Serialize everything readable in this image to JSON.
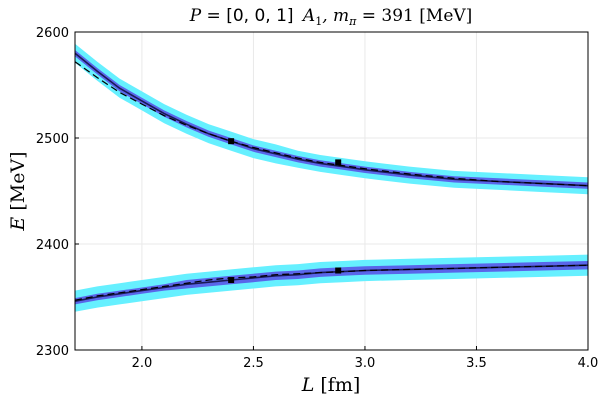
{
  "chart_data": {
    "type": "line",
    "title": "P = [0, 0, 1] A1, mπ = 391 [MeV]",
    "title_parts": {
      "p_label": "P = ",
      "p_value": "[0, 0, 1]",
      "irrep": "A",
      "irrep_sub": "1",
      "sep": ", m",
      "m_sub": "π",
      "m_value": " = 391 [MeV]"
    },
    "xlabel": "L [fm]",
    "xlabel_parts": {
      "var": "L",
      "unit": "[fm]"
    },
    "ylabel": "E [MeV]",
    "ylabel_parts": {
      "var": "E",
      "unit": "[MeV]"
    },
    "xlim": [
      1.7,
      4.0
    ],
    "ylim": [
      2300,
      2600
    ],
    "xticks": [
      "2.0",
      "2.5",
      "3.0",
      "3.5",
      "4.0"
    ],
    "yticks": [
      "2300",
      "2400",
      "2500",
      "2600"
    ],
    "xtick_values": [
      2.0,
      2.5,
      3.0,
      3.5,
      4.0
    ],
    "ytick_values": [
      2300,
      2400,
      2500,
      2600
    ],
    "grid": true,
    "colors": {
      "outer_band": "#66f0ff",
      "inner_band": "#5a66ea",
      "central_line": "#1a1a55",
      "dashed_line": "#000000",
      "points": "#000000"
    },
    "series": [
      {
        "kind": "upper_level",
        "x": [
          1.7,
          1.8,
          1.9,
          2.0,
          2.1,
          2.2,
          2.3,
          2.4,
          2.5,
          2.6,
          2.7,
          2.8,
          2.9,
          3.0,
          3.2,
          3.4,
          3.6,
          3.8,
          4.0
        ],
        "central": [
          2580,
          2563,
          2547,
          2535,
          2523,
          2513,
          2504,
          2497,
          2490,
          2485,
          2480,
          2476,
          2473,
          2470,
          2465,
          2461,
          2459,
          2457,
          2455
        ],
        "outer_half_width": [
          9,
          9,
          9,
          9,
          9,
          9,
          9,
          9,
          9,
          9,
          8,
          8,
          8,
          8,
          8,
          8,
          8,
          8,
          8
        ],
        "inner_half_width": [
          3,
          3,
          3,
          3,
          3,
          3,
          3,
          3,
          3,
          3,
          3,
          3,
          3,
          3,
          3,
          3,
          3,
          3,
          3
        ],
        "dashed": [
          2572,
          2557,
          2543,
          2532,
          2521,
          2512,
          2504,
          2497,
          2491,
          2486,
          2481,
          2477,
          2474,
          2471,
          2466,
          2462,
          2459,
          2457,
          2455
        ]
      },
      {
        "kind": "lower_level",
        "x": [
          1.7,
          1.8,
          1.9,
          2.0,
          2.1,
          2.2,
          2.3,
          2.4,
          2.5,
          2.6,
          2.7,
          2.8,
          2.9,
          3.0,
          3.2,
          3.4,
          3.6,
          3.8,
          4.0
        ],
        "central": [
          2346,
          2350,
          2353,
          2356,
          2359,
          2362,
          2364,
          2366,
          2368,
          2370,
          2371,
          2373,
          2374,
          2375,
          2376,
          2377,
          2378,
          2379,
          2380
        ],
        "outer_half_width": [
          10,
          10,
          10,
          10,
          10,
          10,
          10,
          10,
          10,
          10,
          10,
          10,
          10,
          10,
          10,
          10,
          10,
          10,
          10
        ],
        "inner_half_width": [
          3,
          3,
          3,
          3,
          3,
          4,
          4,
          4,
          4,
          4,
          4,
          4,
          4,
          4,
          4,
          4,
          4,
          4,
          4
        ],
        "dashed": [
          2347,
          2351,
          2354,
          2357,
          2360,
          2363,
          2366,
          2368,
          2369,
          2371,
          2372,
          2373,
          2374,
          2375,
          2376,
          2377,
          2378,
          2379,
          2380
        ]
      }
    ],
    "points": [
      {
        "x": 2.4,
        "y": 2497
      },
      {
        "x": 2.88,
        "y": 2477
      },
      {
        "x": 2.4,
        "y": 2366
      },
      {
        "x": 2.88,
        "y": 2375
      }
    ]
  }
}
